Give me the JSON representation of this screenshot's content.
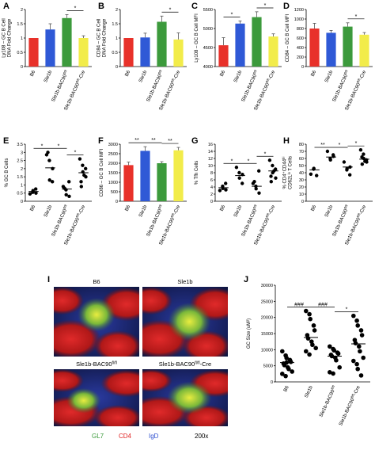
{
  "panels": [
    {
      "letter": "A",
      "ylabel_lines": [
        "Ly108 – GC B Cell",
        "DNA Fold Change"
      ]
    },
    {
      "letter": "B",
      "ylabel_lines": [
        "CD84 – GC B Cell",
        "DNA Fold Change"
      ]
    },
    {
      "letter": "C",
      "ylabel_lines": [
        "Ly108 – GC B Cell MFI"
      ]
    },
    {
      "letter": "D",
      "ylabel_lines": [
        "CD84 – GC B Cell MFI"
      ]
    },
    {
      "letter": "E",
      "ylabel_lines": [
        "% GC B Cells"
      ]
    },
    {
      "letter": "F",
      "ylabel_lines": [
        "CD86 – GC B Cell MFI"
      ]
    },
    {
      "letter": "G",
      "ylabel_lines": [
        "% Tfh Cells"
      ]
    },
    {
      "letter": "H",
      "ylabel_lines": [
        "% CD4⁺CD44ʰⁱ",
        "CD62Lˡᵒ T Cells"
      ]
    },
    {
      "letter": "I",
      "ylabel_lines": []
    },
    {
      "letter": "J",
      "ylabel_lines": [
        "GC Size (uM²)"
      ]
    }
  ],
  "categories": [
    "B6",
    "Sle1b",
    "Sle1b-BAC90fl/fl",
    "Sle1b-BAC90fl/fl-Cre"
  ],
  "categories_j": [
    "B6",
    "Sle1b",
    "Sle1b-BAC90fl/fl",
    "Sle1b-BAC90fl/fl-Cre"
  ],
  "bar_colors": [
    "#e8312a",
    "#2f59d6",
    "#3c9a3c",
    "#f2ec4a"
  ],
  "micrographs": {
    "titles": [
      "B6",
      "Sle1b",
      "Sle1b-BAC90fl/fl",
      "Sle1b-BAC90fl/fl-Cre"
    ],
    "legend": [
      {
        "label": "GL7",
        "color": "#3a9a3a"
      },
      {
        "label": "CD4",
        "color": "#e02020"
      },
      {
        "label": "IgD",
        "color": "#3050d0"
      }
    ],
    "magnification": "200x"
  },
  "chart_data": [
    {
      "panel": "A",
      "type": "bar",
      "ylim": [
        0,
        2
      ],
      "yticks": [
        "0",
        "0.5",
        "1",
        "1.5",
        "2"
      ],
      "values": [
        1.0,
        1.3,
        1.7,
        1.0
      ],
      "errors": [
        0,
        0.2,
        0.12,
        0.08
      ],
      "significance": [
        {
          "from": 2,
          "to": 3,
          "label": "*"
        }
      ]
    },
    {
      "panel": "B",
      "type": "bar",
      "ylim": [
        0,
        2
      ],
      "yticks": [
        "0",
        "0.5",
        "1",
        "1.5",
        "2"
      ],
      "values": [
        1.0,
        1.02,
        1.57,
        0.95
      ],
      "errors": [
        0,
        0.15,
        0.2,
        0.23
      ],
      "significance": [
        {
          "from": 2,
          "to": 3,
          "label": "*"
        }
      ]
    },
    {
      "panel": "C",
      "type": "bar",
      "ylim": [
        4000,
        5500
      ],
      "yticks": [
        "4000",
        "4500",
        "5000",
        "5500"
      ],
      "values": [
        4560,
        5130,
        5300,
        4790
      ],
      "errors": [
        200,
        70,
        140,
        70
      ],
      "significance": [
        {
          "from": 0,
          "to": 1,
          "label": "*"
        },
        {
          "from": 2,
          "to": 3,
          "label": "*"
        }
      ]
    },
    {
      "panel": "D",
      "type": "bar",
      "ylim": [
        0,
        1200
      ],
      "yticks": [
        "0",
        "200",
        "400",
        "600",
        "800",
        "1000",
        "1200"
      ],
      "values": [
        800,
        710,
        840,
        670
      ],
      "errors": [
        110,
        50,
        80,
        45
      ],
      "significance": [
        {
          "from": 2,
          "to": 3,
          "label": "*"
        }
      ]
    },
    {
      "panel": "E",
      "type": "scatter",
      "ylim": [
        0,
        3.5
      ],
      "yticks": [
        "0",
        "0.5",
        "1",
        "1.5",
        "2",
        "2.5",
        "3",
        "3.5"
      ],
      "points": [
        [
          0.45,
          0.55,
          0.65,
          0.75,
          0.5
        ],
        [
          2.85,
          2.5,
          1.3,
          1.2,
          2.0,
          3.0
        ],
        [
          0.9,
          0.7,
          0.4,
          1.2,
          0.3,
          0.8
        ],
        [
          2.6,
          2.2,
          1.8,
          2.0,
          1.5,
          1.2,
          0.9,
          1.6
        ]
      ],
      "means": [
        0.6,
        2.05,
        0.75,
        1.75
      ],
      "significance": [
        {
          "from": 0,
          "to": 1,
          "label": "*"
        },
        {
          "from": 1,
          "to": 2,
          "label": "*"
        },
        {
          "from": 2,
          "to": 3,
          "label": "*"
        }
      ]
    },
    {
      "panel": "F",
      "type": "bar",
      "ylim": [
        0,
        3000
      ],
      "yticks": [
        "0",
        "500",
        "1000",
        "1500",
        "2000",
        "2500",
        "3000"
      ],
      "values": [
        1900,
        2650,
        2000,
        2680
      ],
      "errors": [
        160,
        220,
        80,
        150
      ],
      "significance": [
        {
          "from": 0,
          "to": 1,
          "label": "**"
        },
        {
          "from": 1,
          "to": 2,
          "label": "**"
        },
        {
          "from": 2,
          "to": 3,
          "label": "**"
        }
      ]
    },
    {
      "panel": "G",
      "type": "scatter",
      "ylim": [
        0,
        16
      ],
      "yticks": [
        "0",
        "2",
        "4",
        "6",
        "8",
        "10",
        "12",
        "14",
        "16"
      ],
      "points": [
        [
          3.0,
          4.2,
          3.6,
          5.0,
          3.2
        ],
        [
          9.5,
          8.0,
          6.5,
          5.0,
          7.5
        ],
        [
          5.0,
          4.2,
          3.5,
          8.5,
          2.3,
          5.5
        ],
        [
          11.5,
          10.0,
          8.0,
          9.0,
          6.5,
          7.0,
          5.5,
          8.5
        ]
      ],
      "means": [
        3.8,
        7.2,
        4.2,
        8.5
      ],
      "significance": [
        {
          "from": 0,
          "to": 1,
          "label": "*"
        },
        {
          "from": 1,
          "to": 2,
          "label": "*"
        },
        {
          "from": 2,
          "to": 3,
          "label": "*"
        }
      ]
    },
    {
      "panel": "H",
      "type": "scatter",
      "ylim": [
        0,
        80
      ],
      "yticks": [
        "0",
        "10",
        "20",
        "30",
        "40",
        "50",
        "60",
        "70",
        "80"
      ],
      "points": [
        [
          38,
          45,
          46,
          36
        ],
        [
          70,
          60,
          58,
          65,
          63
        ],
        [
          55,
          44,
          46,
          37,
          48
        ],
        [
          72,
          66,
          60,
          58,
          55,
          62,
          52,
          56
        ]
      ],
      "means": [
        44,
        62,
        48,
        59
      ],
      "significance": [
        {
          "from": 0,
          "to": 1,
          "label": "**"
        },
        {
          "from": 1,
          "to": 2,
          "label": "*"
        },
        {
          "from": 2,
          "to": 3,
          "label": "*"
        }
      ]
    },
    {
      "panel": "J",
      "type": "scatter",
      "ylim": [
        0,
        30000
      ],
      "yticks": [
        "0",
        "5000",
        "10000",
        "15000",
        "20000",
        "25000",
        "30000"
      ],
      "points": [
        [
          9500,
          8200,
          7400,
          6800,
          6200,
          5700,
          5200,
          4500,
          4000,
          3200,
          2500,
          1800,
          6000
        ],
        [
          22000,
          21000,
          19500,
          17500,
          16000,
          14500,
          13500,
          12500,
          11500,
          10500,
          9500,
          8500
        ],
        [
          11000,
          10200,
          9800,
          9100,
          8800,
          8400,
          8000,
          7500,
          6700,
          4500,
          3000,
          2600
        ],
        [
          20500,
          19000,
          17500,
          16000,
          14500,
          13000,
          12000,
          11000,
          9500,
          7500,
          6500,
          5500,
          4000,
          2000
        ]
      ],
      "means": [
        6000,
        13800,
        8000,
        11800
      ],
      "significance": [
        {
          "from": 0,
          "to": 1,
          "label": "###"
        },
        {
          "from": 1,
          "to": 2,
          "label": "###"
        },
        {
          "from": 2,
          "to": 3,
          "label": "*"
        }
      ]
    }
  ]
}
